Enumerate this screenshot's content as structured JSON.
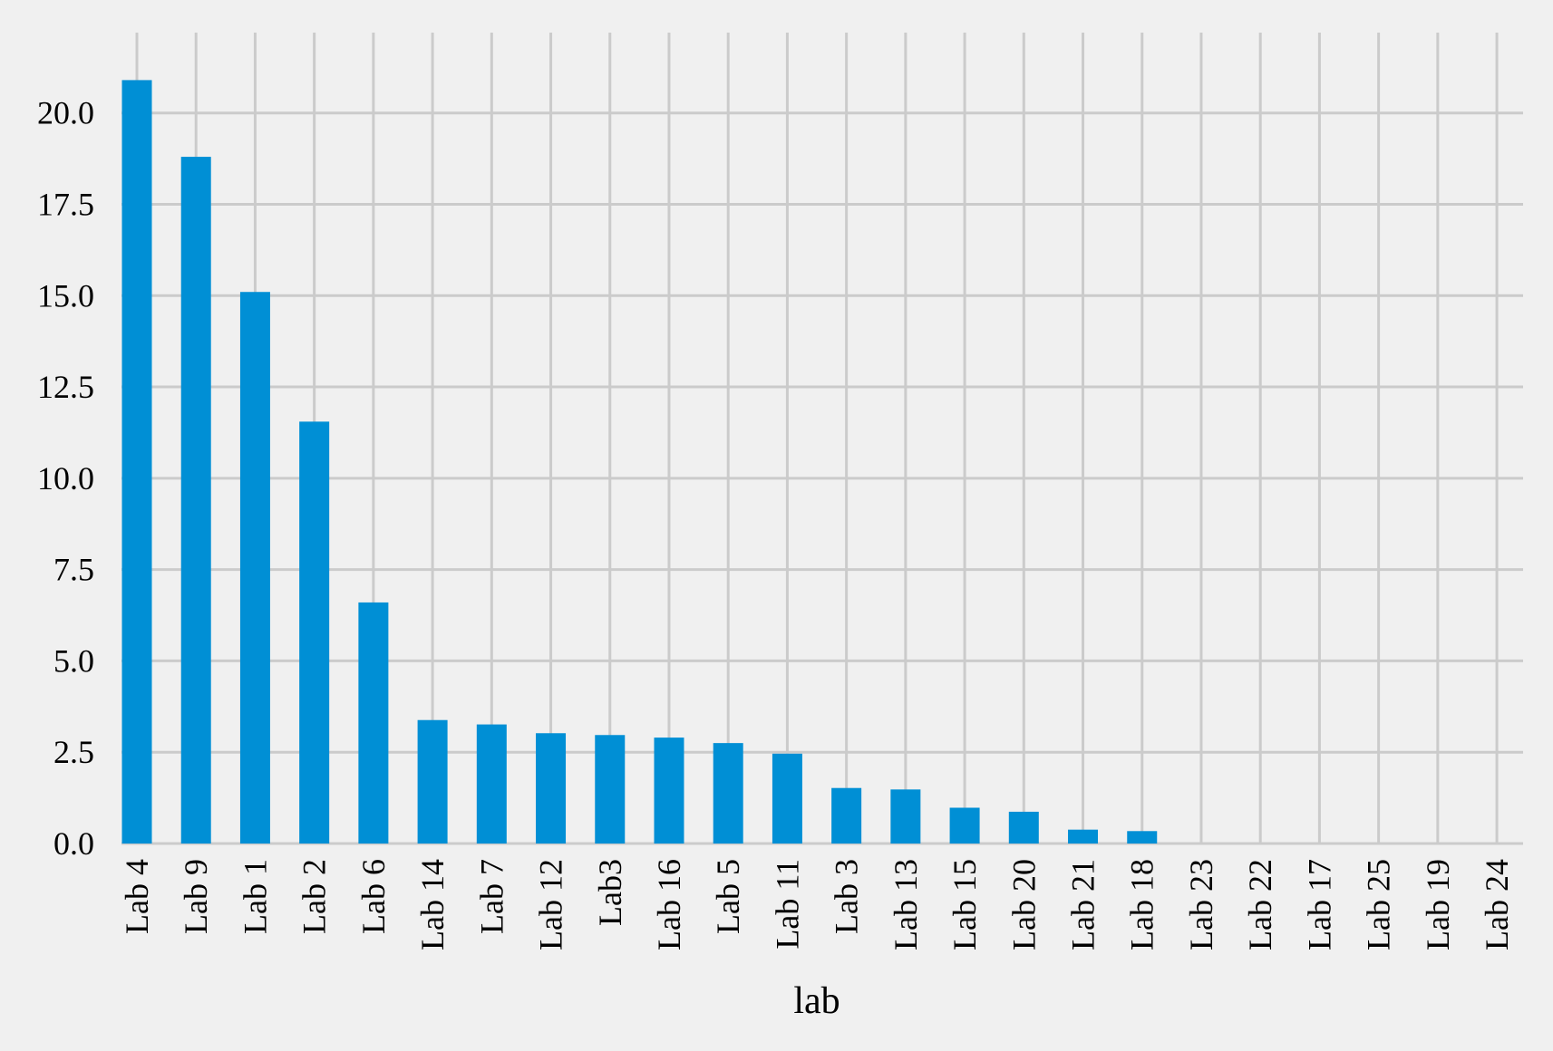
{
  "chart_data": {
    "type": "bar",
    "title": "",
    "xlabel": "lab",
    "ylabel": "",
    "categories": [
      "Lab 4",
      "Lab 9",
      "Lab 1",
      "Lab 2",
      "Lab 6",
      "Lab 14",
      "Lab 7",
      "Lab 12",
      "Lab3",
      "Lab 16",
      "Lab 5",
      "Lab 11",
      "Lab 3",
      "Lab 13",
      "Lab 15",
      "Lab 20",
      "Lab 21",
      "Lab 18",
      "Lab 23",
      "Lab 22",
      "Lab 17",
      "Lab 25",
      "Lab 19",
      "Lab 24"
    ],
    "values": [
      20.9,
      18.8,
      15.1,
      11.55,
      6.6,
      3.38,
      3.26,
      3.02,
      2.97,
      2.9,
      2.75,
      2.46,
      1.52,
      1.48,
      0.98,
      0.87,
      0.38,
      0.34,
      0,
      0,
      0,
      0,
      0,
      0
    ],
    "ylim": [
      0,
      22.2
    ],
    "yticks": [
      "0.0",
      "2.5",
      "5.0",
      "7.5",
      "10.0",
      "12.5",
      "15.0",
      "17.5",
      "20.0"
    ],
    "ytick_values": [
      0,
      2.5,
      5,
      7.5,
      10,
      12.5,
      15,
      17.5,
      20
    ],
    "grid": true,
    "legend": "none",
    "bar_color": "#008fd5",
    "grid_color": "#cbcbcb",
    "background_color": "#f0f0f0"
  }
}
